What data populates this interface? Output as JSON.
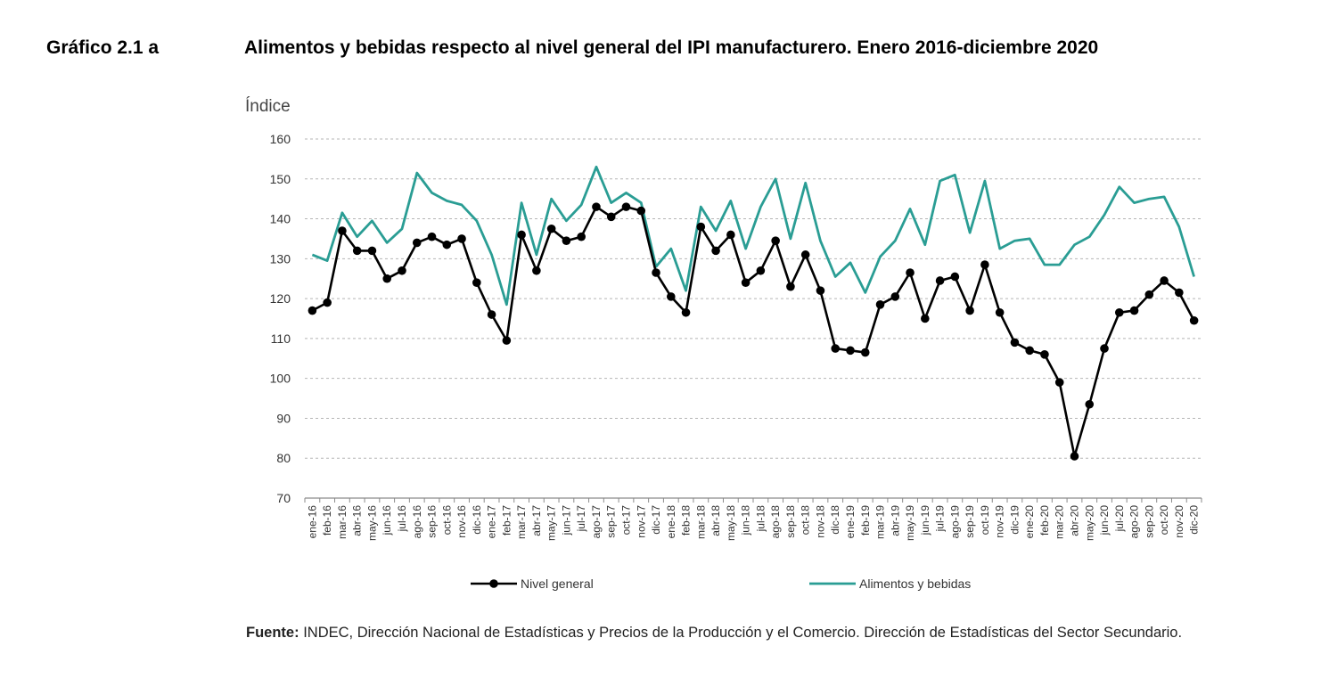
{
  "figure": {
    "label": "Gráfico 2.1 a",
    "title": "Alimentos y bebidas respecto al nivel general del IPI manufacturero. Enero 2016-diciembre 2020"
  },
  "source": {
    "label": "Fuente:",
    "text": "INDEC, Dirección Nacional de Estadísticas y Precios de la Producción y el Comercio. Dirección de Estadísticas del Sector Secundario."
  },
  "chart_data": {
    "type": "line",
    "title": "",
    "ylabel": "Índice",
    "xlabel": "",
    "ylim": [
      70,
      160
    ],
    "yticks": [
      70,
      80,
      90,
      100,
      110,
      120,
      130,
      140,
      150,
      160
    ],
    "grid": "horizontal dashed",
    "legend_position": "bottom",
    "categories": [
      "ene-16",
      "feb-16",
      "mar-16",
      "abr-16",
      "may-16",
      "jun-16",
      "jul-16",
      "ago-16",
      "sep-16",
      "oct-16",
      "nov-16",
      "dic-16",
      "ene-17",
      "feb-17",
      "mar-17",
      "abr-17",
      "may-17",
      "jun-17",
      "jul-17",
      "ago-17",
      "sep-17",
      "oct-17",
      "nov-17",
      "dic-17",
      "ene-18",
      "feb-18",
      "mar-18",
      "abr-18",
      "may-18",
      "jun-18",
      "jul-18",
      "ago-18",
      "sep-18",
      "oct-18",
      "nov-18",
      "dic-18",
      "ene-19",
      "feb-19",
      "mar-19",
      "abr-19",
      "may-19",
      "jun-19",
      "jul-19",
      "ago-19",
      "sep-19",
      "oct-19",
      "nov-19",
      "dic-19",
      "ene-20",
      "feb-20",
      "mar-20",
      "abr-20",
      "may-20",
      "jun-20",
      "jul-20",
      "ago-20",
      "sep-20",
      "oct-20",
      "nov-20",
      "dic-20"
    ],
    "series": [
      {
        "name": "Nivel general",
        "color": "#000000",
        "marker": "circle",
        "values": [
          117,
          119,
          137,
          132,
          132,
          125,
          127,
          134,
          135.5,
          133.5,
          135,
          124,
          116,
          109.5,
          136,
          127,
          137.5,
          134.5,
          135.5,
          143,
          140.5,
          143,
          142,
          126.5,
          120.5,
          116.5,
          138,
          132,
          136,
          124,
          127,
          134.5,
          123,
          131,
          122,
          107.5,
          107,
          106.5,
          118.5,
          120.5,
          126.5,
          115,
          124.5,
          125.5,
          117,
          128.5,
          116.5,
          109,
          107,
          106,
          99,
          80.5,
          93.5,
          107.5,
          116.5,
          117,
          121,
          124.5,
          121.5,
          114.5
        ]
      },
      {
        "name": "Alimentos y bebidas",
        "color": "#2a9d94",
        "marker": "none",
        "values": [
          131,
          129.5,
          141.5,
          135.5,
          139.5,
          134,
          137.5,
          151.5,
          146.5,
          144.5,
          143.5,
          139.5,
          131,
          118.5,
          144,
          131,
          145,
          139.5,
          143.5,
          153,
          144,
          146.5,
          144,
          128,
          132.5,
          122,
          143,
          137,
          144.5,
          132.5,
          143,
          150,
          135,
          149,
          134.5,
          125.5,
          129,
          121.5,
          130.5,
          134.5,
          142.5,
          133.5,
          149.5,
          151,
          136.5,
          149.5,
          132.5,
          134.5,
          135,
          128.5,
          128.5,
          133.5,
          135.5,
          141,
          148,
          144,
          145,
          145.5,
          138,
          125.5
        ]
      }
    ]
  }
}
